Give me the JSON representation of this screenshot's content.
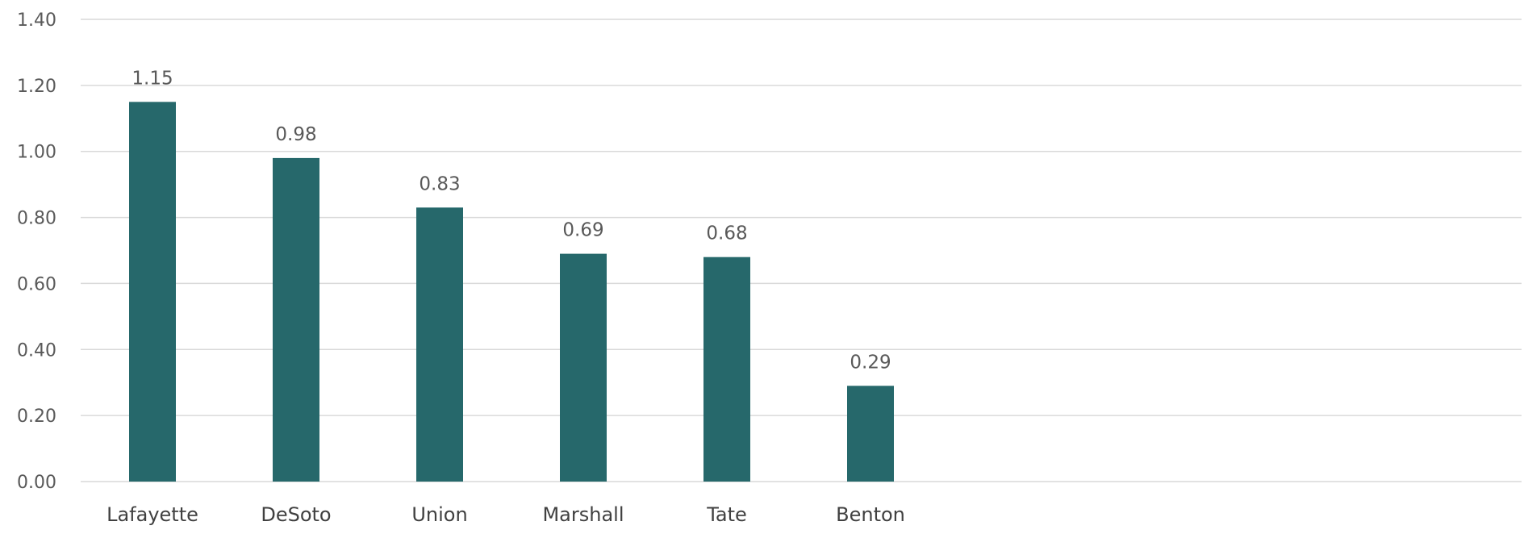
{
  "chart_data": {
    "type": "bar",
    "title": "",
    "xlabel": "",
    "ylabel": "",
    "categories": [
      "Lafayette",
      "DeSoto",
      "Union",
      "Marshall",
      "Tate",
      "Benton"
    ],
    "values": [
      1.15,
      0.98,
      0.83,
      0.69,
      0.68,
      0.29
    ],
    "value_labels": [
      "1.15",
      "0.98",
      "0.83",
      "0.69",
      "0.68",
      "0.29"
    ],
    "ylim": [
      0,
      1.4
    ],
    "y_ticks": [
      0,
      0.2,
      0.4,
      0.6,
      0.8,
      1.0,
      1.2,
      1.4
    ],
    "y_tick_labels": [
      "0.00",
      "0.20",
      "0.40",
      "0.60",
      "0.80",
      "1.00",
      "1.20",
      "1.40"
    ],
    "grid": true,
    "legend": "none",
    "bar_color": "#26686b",
    "gridline_color": "#d9d9d9"
  }
}
